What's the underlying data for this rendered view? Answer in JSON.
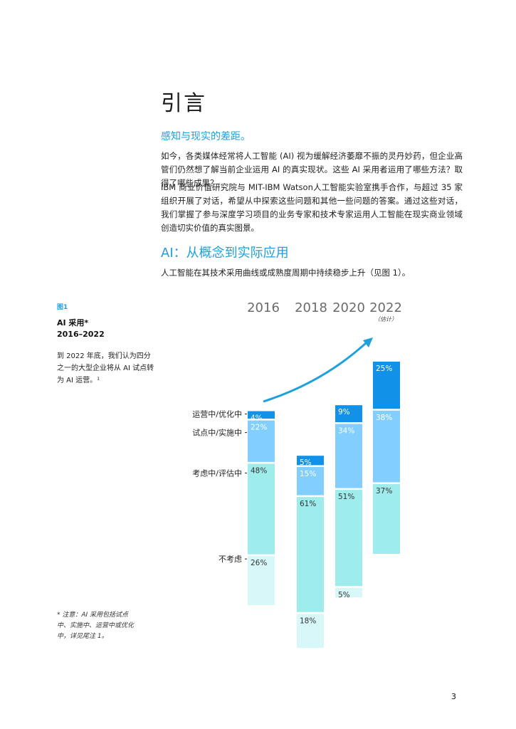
{
  "page": {
    "title": "引言",
    "subtitle": "感知与现实的差距。",
    "paragraphs": [
      "如今，各类媒体经常将人工智能 (AI) 视为缓解经济萎靡不振的灵丹妙药，但企业高管们仍然想了解当前企业运用 AI 的真实现状。这些 AI 采用者运用了哪些方法？取得了哪些成果？",
      "IBM 商业价值研究院与 MIT-IBM Watson人工智能实验室携手合作，与超过 35 家组织开展了对话，希望从中探索这些问题和其他一些问题的答案。通过这些对话，我们掌握了参与深度学习项目的业务专家和技术专家运用人工智能在现实商业领域创造切实价值的真实图景。"
    ],
    "section_heading": "AI：从概念到实际应用",
    "section_text": "人工智能在其技术采用曲线或成熟度周期中持续稳步上升（见图 1）。",
    "page_number": "3"
  },
  "figure": {
    "label": "图1",
    "title_line1": "AI 采用*",
    "title_line2": "2016–2022",
    "description": "到 2022 年底，我们认为四分之一的大型企业将从 AI 试点转为 AI 运营。¹",
    "note": "* 注意：AI 采用包括试点中、实施中、运营中或优化中，详见尾注 1。"
  },
  "chart_data": {
    "type": "bar",
    "stacked": true,
    "categories": [
      "2016",
      "2018",
      "2020",
      "2022"
    ],
    "estimate_label": "（估计）",
    "estimate_category": "2022",
    "series": [
      {
        "name": "不考虑",
        "values": [
          26,
          18,
          5,
          null
        ],
        "color": "#d8f7f9"
      },
      {
        "name": "考虑中/评估中",
        "values": [
          48,
          61,
          51,
          37
        ],
        "color": "#9fecec"
      },
      {
        "name": "试点中/实施中",
        "values": [
          22,
          15,
          34,
          38
        ],
        "color": "#82cfff"
      },
      {
        "name": "运营中/优化中",
        "values": [
          4,
          5,
          9,
          25
        ],
        "color": "#1192e8"
      }
    ],
    "value_labels": [
      [
        "26%",
        "48%",
        "22%",
        "4%"
      ],
      [
        "18%",
        "61%",
        "15%",
        "5%"
      ],
      [
        "5%",
        "51%",
        "34%",
        "9%"
      ],
      [
        "",
        "37%",
        "38%",
        "25%"
      ]
    ],
    "trend_arrow": true,
    "colors": {
      "accent": "#1f9fdc",
      "arrow": "#1f9fdc"
    }
  }
}
